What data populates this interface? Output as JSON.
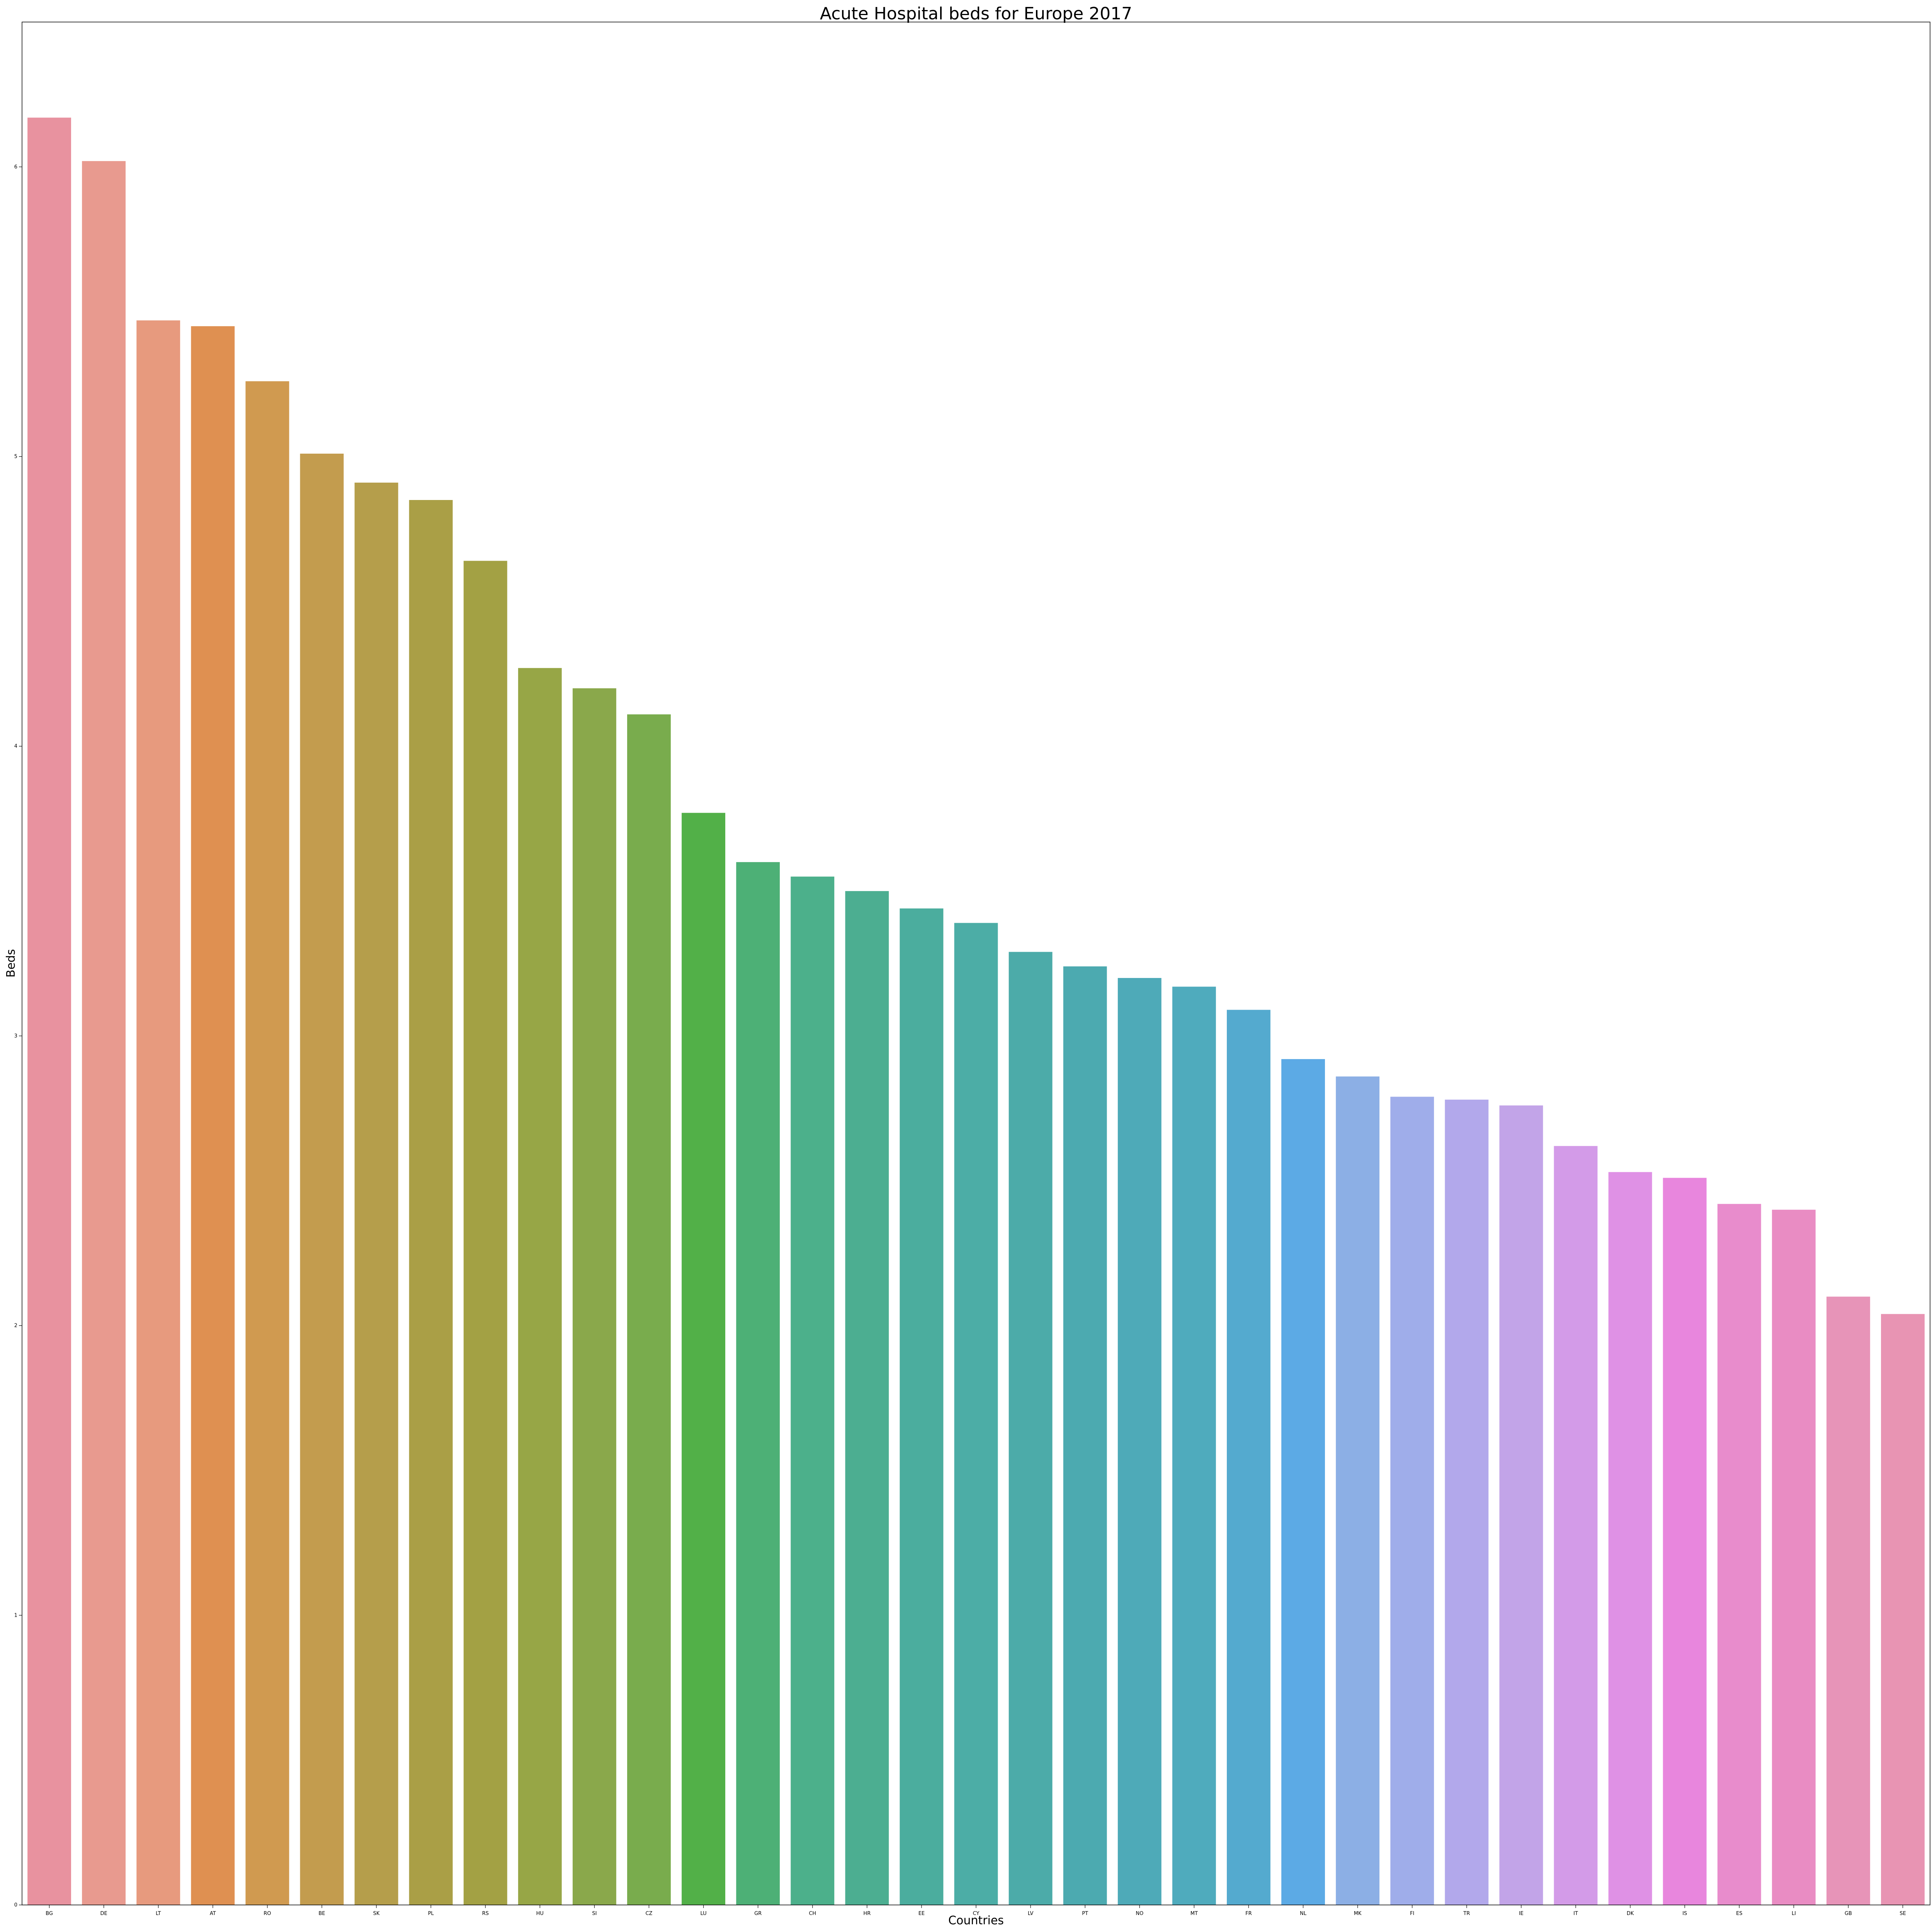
{
  "chart_data": {
    "type": "bar",
    "title": "Acute Hospital beds for Europe 2017",
    "xlabel": "Countries",
    "ylabel": "Beds",
    "ylim": [
      0,
      6.5
    ],
    "yticks": [
      0,
      1,
      2,
      3,
      4,
      5,
      6
    ],
    "grid": false,
    "legend": "none",
    "categories": [
      "BG",
      "DE",
      "LT",
      "AT",
      "RO",
      "BE",
      "SK",
      "PL",
      "RS",
      "HU",
      "SI",
      "CZ",
      "LU",
      "GR",
      "CH",
      "HR",
      "EE",
      "CY",
      "LV",
      "PT",
      "NO",
      "MT",
      "FR",
      "NL",
      "MK",
      "FI",
      "TR",
      "IE",
      "IT",
      "DK",
      "IS",
      "ES",
      "LI",
      "GB",
      "SE"
    ],
    "values": [
      6.17,
      6.02,
      5.47,
      5.45,
      5.26,
      5.01,
      4.91,
      4.85,
      4.64,
      4.27,
      4.2,
      4.11,
      3.77,
      3.6,
      3.55,
      3.5,
      3.44,
      3.39,
      3.29,
      3.24,
      3.2,
      3.17,
      3.09,
      2.92,
      2.86,
      2.79,
      2.78,
      2.76,
      2.62,
      2.53,
      2.51,
      2.42,
      2.4,
      2.1,
      2.04
    ],
    "colors": [
      "#e8929f",
      "#e89a8f",
      "#e79a7e",
      "#df9051",
      "#d09a50",
      "#c39c4e",
      "#b59e4b",
      "#aa9f46",
      "#a3a144",
      "#97a646",
      "#8aa84b",
      "#79ac4d",
      "#52b048",
      "#4db076",
      "#4cb08b",
      "#4cae91",
      "#4bad9e",
      "#4cada6",
      "#4caba9",
      "#4caab0",
      "#4eaab8",
      "#4fabbd",
      "#54aacf",
      "#5caae5",
      "#8cafe5",
      "#9fadea",
      "#b2a8eb",
      "#c2a4e8",
      "#d39be8",
      "#df91e5",
      "#e886dd",
      "#e88ccc",
      "#e98cc3",
      "#e794b8",
      "#e894b3"
    ]
  }
}
